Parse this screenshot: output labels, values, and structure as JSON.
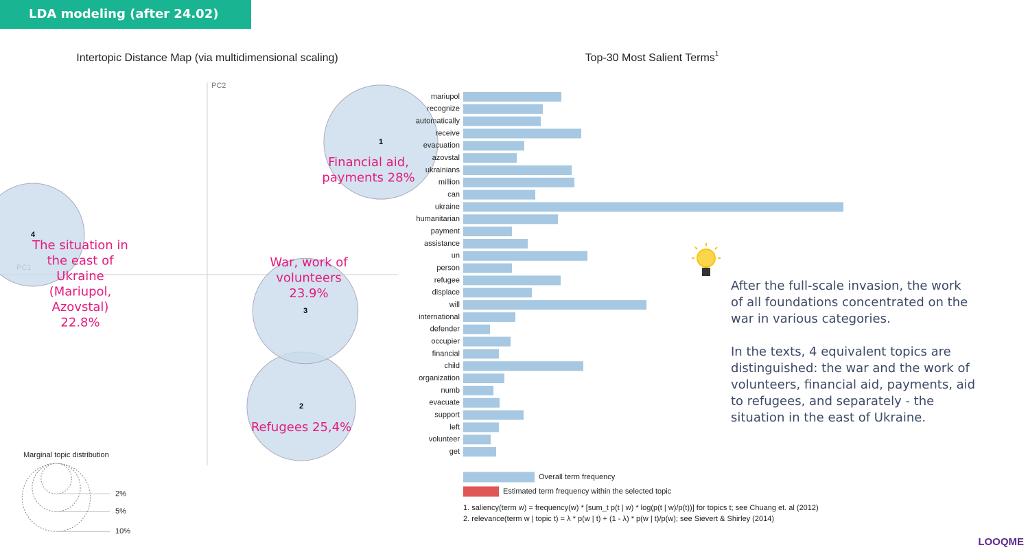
{
  "header": {
    "title": "LDA modeling (after 24.02)"
  },
  "chart_data": [
    {
      "type": "scatter",
      "title": "Intertopic Distance Map (via multidimensional scaling)",
      "x_label": "PC1",
      "y_label": "PC2",
      "labels": [
        "1",
        "2",
        "3",
        "4"
      ],
      "x": [
        2.53,
        1.37,
        1.43,
        -2.54
      ],
      "y": [
        1.93,
        -1.92,
        -0.53,
        0.58
      ],
      "sizes": [
        28,
        25.4,
        23.9,
        22.8
      ],
      "annotations": [
        [
          "Financial aid,",
          "payments 28%"
        ],
        [
          "Refugees 25,4%"
        ],
        [
          "War, work of",
          "volunteers",
          "23.9%"
        ],
        [
          "The situation in",
          "the east of",
          "Ukraine",
          "(Mariupol,",
          "Azovstal)",
          "22.8%"
        ]
      ],
      "xlim": [
        -3.02,
        2.78
      ],
      "ylim": [
        -2.78,
        2.8
      ],
      "color": "#c9dceb",
      "size_legend": {
        "title": "Marginal topic distribution",
        "sizes": [
          {
            "value": 2,
            "label": "2%"
          },
          {
            "value": 5,
            "label": "5%"
          },
          {
            "value": 10,
            "label": "10%"
          }
        ]
      }
    },
    {
      "type": "hbar",
      "title": "Top-30 Most Salient Terms",
      "title_note": "1",
      "categories": [
        "mariupol",
        "recognize",
        "automatically",
        "receive",
        "evacuation",
        "azovstal",
        "ukrainians",
        "million",
        "can",
        "ukraine",
        "humanitarian",
        "payment",
        "assistance",
        "un",
        "person",
        "refugee",
        "displace",
        "will",
        "international",
        "defender",
        "occupier",
        "financial",
        "child",
        "organization",
        "numb",
        "evacuate",
        "support",
        "left",
        "volunteer",
        "get"
      ],
      "values": [
        143,
        116,
        113,
        172,
        89,
        78,
        158,
        162,
        105,
        554,
        138,
        71,
        94,
        181,
        71,
        142,
        100,
        267,
        76,
        39,
        69,
        52,
        175,
        60,
        44,
        53,
        88,
        52,
        40,
        48
      ],
      "color": "#a6c8e2",
      "legend": [
        {
          "name": "Overall term frequency",
          "color": "#a6c8e2"
        },
        {
          "name": "Estimated term frequency within the selected topic",
          "color": "#e05656"
        }
      ],
      "footnotes": [
        "1. saliency(term w) = frequency(w) * [sum_t p(t | w) * log(p(t | w)/p(t))] for topics t; see Chuang et. al (2012)",
        "2. relevance(term w | topic t) = λ * p(w | t) + (1 - λ) * p(w | t)/p(w); see Sievert & Shirley (2014)"
      ]
    }
  ],
  "notes": {
    "paragraphs": [
      [
        "After the full-scale invasion, the work",
        "of all foundations concentrated on the",
        "war in various categories."
      ],
      [
        "In the texts, 4 equivalent topics are",
        "distinguished: the war and the work of",
        "volunteers, financial aid, payments, aid",
        "to refugees, and separately - the",
        "situation in the east of Ukraine."
      ]
    ]
  },
  "logo": "LOOQME"
}
